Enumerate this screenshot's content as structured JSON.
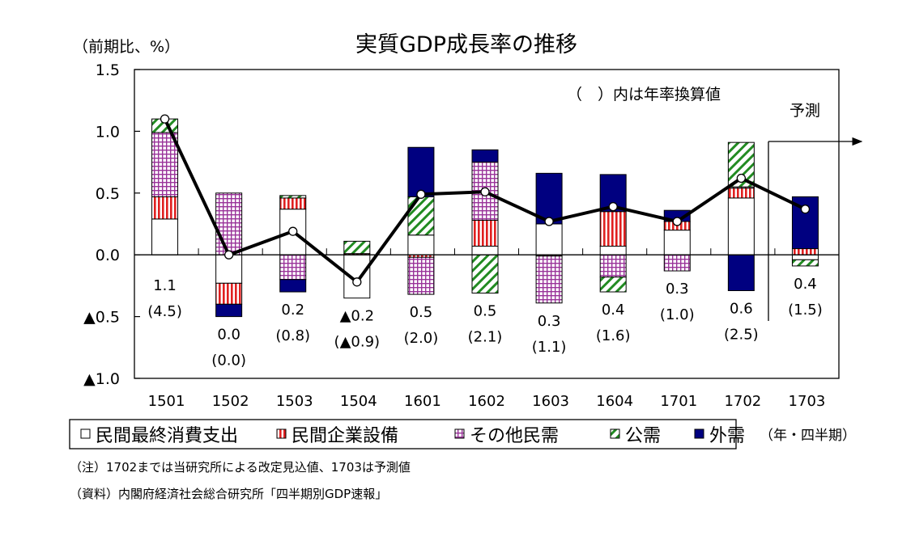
{
  "chart_data": {
    "type": "bar",
    "stacked": true,
    "title": "実質GDP成長率の推移",
    "ylabel": "（前期比、%）",
    "xlabel": "（年・四半期）",
    "annotation_annual": "（　）内は年率換算値",
    "forecast_label": "予測",
    "ylim": [
      -1.0,
      1.5
    ],
    "yticks": [
      1.5,
      1.0,
      0.5,
      0.0,
      -0.5,
      -1.0
    ],
    "ytick_labels": [
      "1.5",
      "1.0",
      "0.5",
      "0.0",
      "▲0.5",
      "▲1.0"
    ],
    "grid": false,
    "legend_position": "bottom",
    "categories": [
      "1501",
      "1502",
      "1503",
      "1504",
      "1601",
      "1602",
      "1603",
      "1604",
      "1701",
      "1702",
      "1703"
    ],
    "forecast_from": "1703",
    "series": [
      {
        "name": "民間最終消費支出",
        "key": "consumption",
        "color": "#ffffff",
        "pattern": "none",
        "values": [
          0.29,
          -0.23,
          0.37,
          -0.35,
          0.16,
          0.07,
          0.25,
          0.07,
          0.2,
          0.46,
          -0.04
        ]
      },
      {
        "name": "民間企業設備",
        "key": "investment",
        "color": "#e02020",
        "pattern": "vertical",
        "values": [
          0.18,
          -0.17,
          0.09,
          0.01,
          -0.02,
          0.21,
          -0.01,
          0.28,
          0.07,
          0.08,
          0.05
        ]
      },
      {
        "name": "その他民需",
        "key": "other_private",
        "color": "#993399",
        "pattern": "grid",
        "values": [
          0.52,
          0.5,
          -0.2,
          0.0,
          -0.3,
          0.47,
          -0.38,
          -0.18,
          -0.13,
          0.01,
          0.0
        ]
      },
      {
        "name": "公需",
        "key": "public",
        "color": "#228b22",
        "pattern": "diagonal",
        "values": [
          0.11,
          0.0,
          0.02,
          0.1,
          0.31,
          -0.31,
          0.0,
          -0.12,
          0.0,
          0.36,
          -0.05
        ]
      },
      {
        "name": "外需",
        "key": "external",
        "color": "#000080",
        "pattern": "solid",
        "values": [
          0.0,
          -0.1,
          -0.1,
          0.0,
          0.4,
          0.1,
          0.41,
          0.3,
          0.09,
          -0.29,
          0.42
        ]
      }
    ],
    "line": {
      "name": "実質GDP成長率",
      "values": [
        1.1,
        0.0,
        0.19,
        -0.22,
        0.49,
        0.51,
        0.27,
        0.39,
        0.27,
        0.62,
        0.37
      ]
    },
    "value_labels": [
      "1.1",
      "0.0",
      "0.2",
      "▲0.2",
      "0.5",
      "0.5",
      "0.3",
      "0.4",
      "0.3",
      "0.6",
      "0.4"
    ],
    "annualized_labels": [
      "(4.5)",
      "(0.0)",
      "(0.8)",
      "(▲0.9)",
      "(2.0)",
      "(2.1)",
      "(1.1)",
      "(1.6)",
      "(1.0)",
      "(2.5)",
      "(1.5)"
    ]
  },
  "notes": {
    "note": "（注）1702までは当研究所による改定見込値、1703は予測値",
    "source": "（資料）内閣府経済社会総合研究所「四半期別GDP速報」"
  }
}
